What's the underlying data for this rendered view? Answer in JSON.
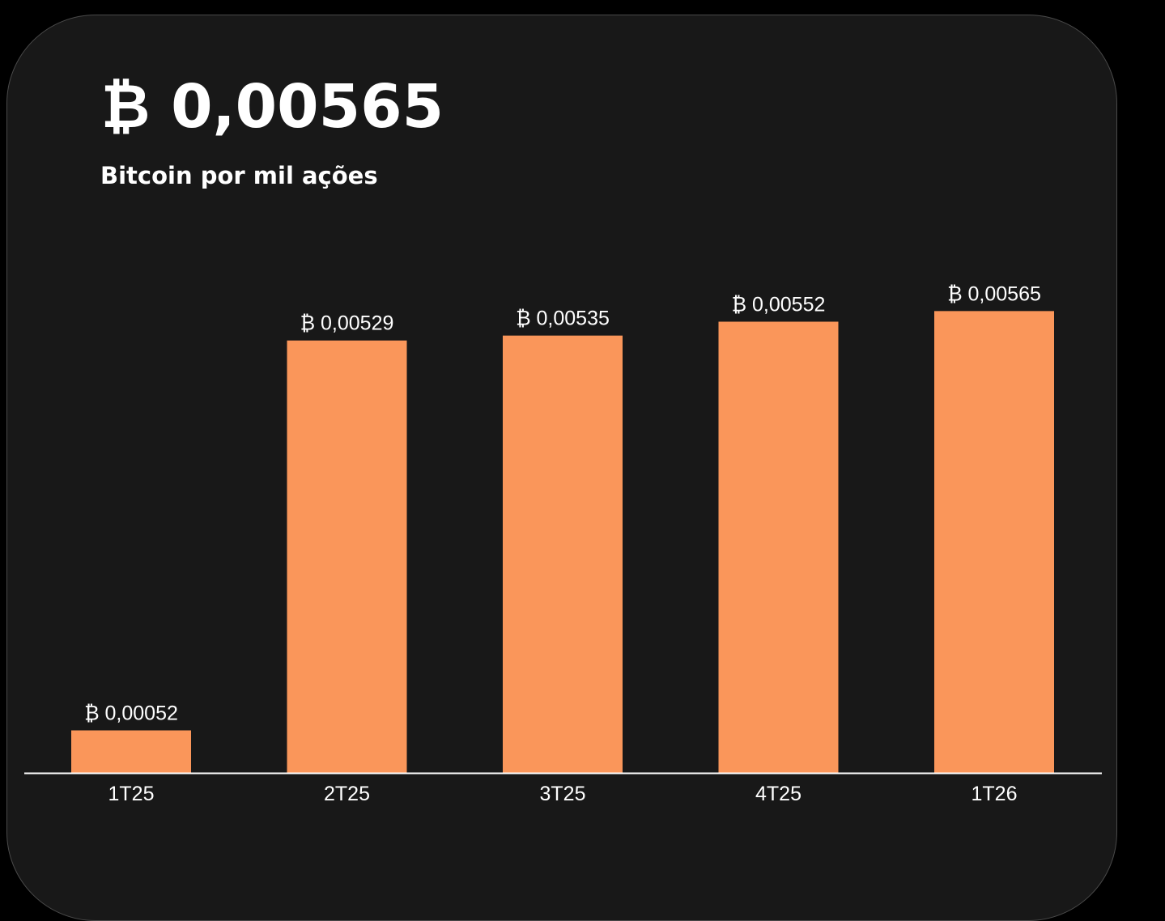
{
  "header": {
    "value": "₿ 0,00565",
    "caption": "Bitcoin por mil ações"
  },
  "colors": {
    "background": "#000000",
    "card": "#181818",
    "bar": "#fa965a",
    "axis": "#ffffff",
    "text": "#ffffff"
  },
  "chart_data": {
    "type": "bar",
    "title": "",
    "xlabel": "",
    "ylabel": "",
    "categories": [
      "1T25",
      "2T25",
      "3T25",
      "4T25",
      "1T26"
    ],
    "values": [
      0.00052,
      0.00529,
      0.00535,
      0.00552,
      0.00565
    ],
    "data_labels": [
      "₿ 0,00052",
      "₿ 0,00529",
      "₿ 0,00535",
      "₿ 0,00552",
      "₿ 0,00565"
    ],
    "ylim": [
      0,
      0.006
    ],
    "grid": false,
    "legend": "none"
  }
}
